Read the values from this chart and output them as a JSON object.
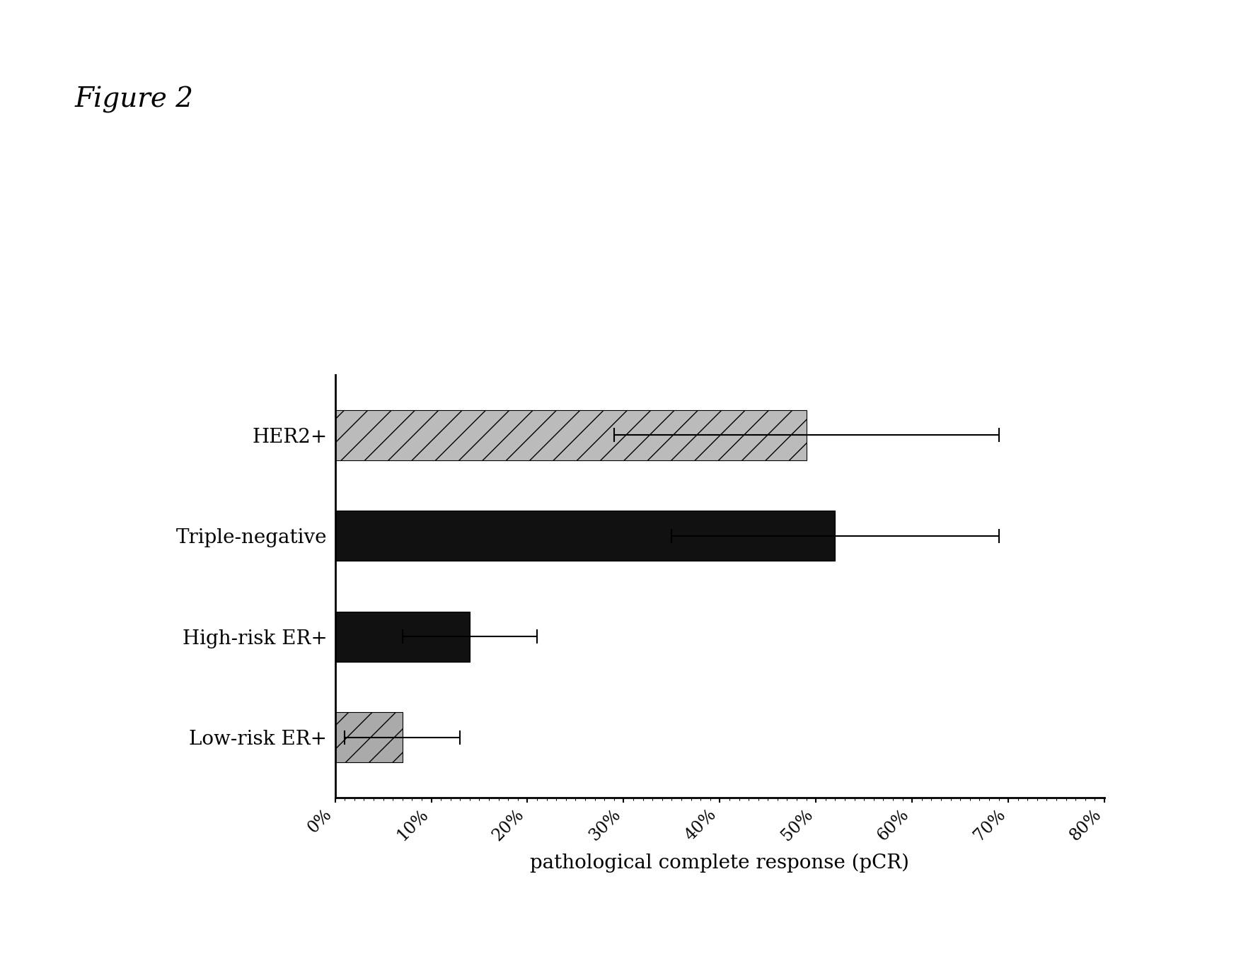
{
  "title": "Figure 2",
  "categories": [
    "Low-risk ER+",
    "High-risk ER+",
    "Triple-negative",
    "HER2+"
  ],
  "values": [
    0.07,
    0.14,
    0.52,
    0.49
  ],
  "errors": [
    0.06,
    0.07,
    0.17,
    0.2
  ],
  "bar_colors": [
    "#aaaaaa",
    "#111111",
    "#111111",
    "#bbbbbb"
  ],
  "bar_hatches": [
    "/",
    "",
    "",
    "/"
  ],
  "xlabel": "pathological complete response (pCR)",
  "xlim": [
    0,
    0.8
  ],
  "xticks": [
    0.0,
    0.1,
    0.2,
    0.3,
    0.4,
    0.5,
    0.6,
    0.7,
    0.8
  ],
  "xticklabels": [
    "0%",
    "10%",
    "20%",
    "30%",
    "40%",
    "50%",
    "60%",
    "70%",
    "80%"
  ],
  "background_color": "#ffffff",
  "title_fontsize": 28,
  "label_fontsize": 20,
  "tick_fontsize": 17,
  "xlabel_fontsize": 20
}
